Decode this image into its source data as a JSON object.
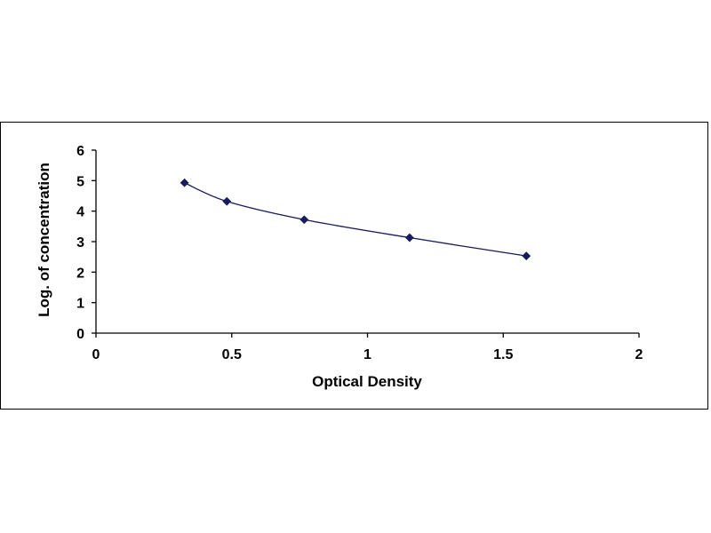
{
  "chart_data": {
    "type": "scatter",
    "title": "",
    "xlabel": "Optical Density",
    "ylabel": "Log. of concentration",
    "xlim": [
      0,
      2
    ],
    "ylim": [
      0,
      6
    ],
    "x_ticks": [
      "0",
      "0.5",
      "1",
      "1.5",
      "2"
    ],
    "y_ticks": [
      "0",
      "1",
      "2",
      "3",
      "4",
      "5",
      "6"
    ],
    "grid": false,
    "legend": "none",
    "smoothed_line": true,
    "series": [
      {
        "x": [
          0.326,
          0.482,
          0.767,
          1.155,
          1.585
        ],
        "y": [
          4.93,
          4.32,
          3.72,
          3.13,
          2.53
        ],
        "color": "#1a1a5e"
      }
    ]
  }
}
